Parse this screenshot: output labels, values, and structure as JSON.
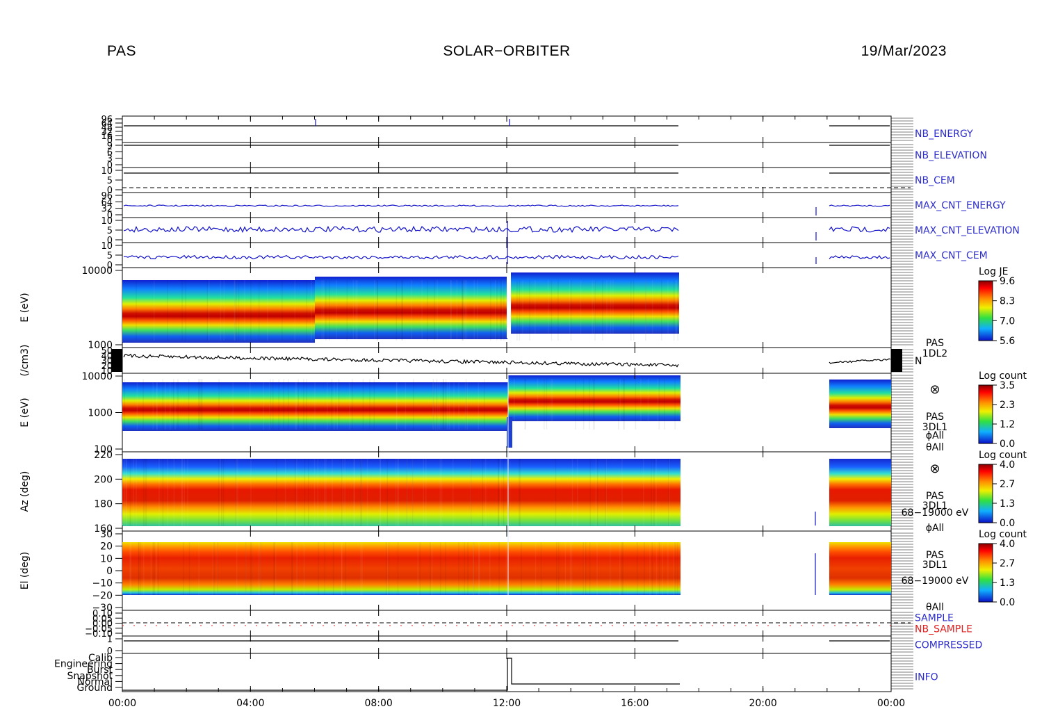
{
  "header": {
    "instrument": "PAS",
    "mission": "SOLAR−ORBITER",
    "date": "19/Mar/2023"
  },
  "colors": {
    "label_blue": "#2c2ccc",
    "label_red": "#e02020",
    "trace_blue": "#1010c8",
    "trace_black": "#000000"
  },
  "chart_data": [
    {
      "type": "line",
      "id": "nb_energy",
      "series": [
        {
          "name": "NB_ENERGY",
          "values": []
        }
      ],
      "ytick_labels": [
        "96",
        "64",
        "48",
        "32",
        "16",
        "0"
      ],
      "label_color": "#2c2ccc"
    },
    {
      "type": "line",
      "id": "nb_elevation",
      "series": [
        {
          "name": "NB_ELEVATION",
          "values": []
        }
      ],
      "ytick_labels": [
        "9",
        "6",
        "3",
        "0"
      ],
      "label_color": "#2c2ccc"
    },
    {
      "type": "line",
      "id": "nb_cem",
      "series": [
        {
          "name": "NB_CEM",
          "values": []
        }
      ],
      "ytick_labels": [
        "10",
        "5",
        "0"
      ],
      "label_color": "#2c2ccc"
    },
    {
      "type": "line",
      "id": "max_cnt_energy",
      "series": [
        {
          "name": "MAX_CNT_ENERGY",
          "values": []
        }
      ],
      "ytick_labels": [
        "96",
        "64",
        "32",
        "0"
      ],
      "label_color": "#2c2ccc"
    },
    {
      "type": "line",
      "id": "max_cnt_elevation",
      "series": [
        {
          "name": "MAX_CNT_ELEVATION",
          "values": []
        }
      ],
      "ytick_labels": [
        "10",
        "5",
        "0"
      ],
      "label_color": "#2c2ccc"
    },
    {
      "type": "line",
      "id": "max_cnt_cem",
      "series": [
        {
          "name": "MAX_CNT_CEM",
          "values": []
        }
      ],
      "ytick_labels": [
        "10",
        "5",
        "0"
      ],
      "label_color": "#2c2ccc"
    },
    {
      "type": "heatmap",
      "id": "spectrogram_1",
      "ylabel": "E (eV)",
      "yscale": "log",
      "ylim": [
        400,
        16000
      ],
      "ytick_labels": [
        "10000",
        "1000"
      ],
      "colorbar": {
        "label": "Log JE",
        "ticks": [
          "9.6",
          "8.3",
          "7.0",
          "5.6"
        ]
      },
      "side_text": []
    },
    {
      "type": "line",
      "id": "density",
      "ylabel": "(/cm3)",
      "ytick_labels": [
        "50",
        "40",
        "30",
        "20",
        "10"
      ],
      "ylim": [
        10,
        50
      ],
      "series": [
        {
          "name": "N",
          "values": []
        }
      ],
      "side_text": [
        "PAS",
        "1DL2"
      ]
    },
    {
      "type": "heatmap",
      "id": "spectrogram_2",
      "ylabel": "E (eV)",
      "yscale": "log",
      "ylim": [
        60,
        16000
      ],
      "ytick_labels": [
        "10000",
        "1000",
        "100"
      ],
      "colorbar": {
        "label": "Log count",
        "ticks": [
          "3.5",
          "2.3",
          "1.2",
          "0.0"
        ]
      },
      "side_text": [
        "⊗",
        "PAS",
        "3DL1",
        "ϕAll",
        "θAll"
      ]
    },
    {
      "type": "heatmap",
      "id": "azimuth",
      "ylabel": "Az (deg)",
      "ylim": [
        150,
        225
      ],
      "ytick_labels": [
        "220",
        "200",
        "180",
        "160"
      ],
      "colorbar": {
        "label": "Log count",
        "ticks": [
          "4.0",
          "2.7",
          "1.3",
          "0.0"
        ]
      },
      "side_text": [
        "⊗",
        "PAS",
        "3DL1",
        "68−19000 eV",
        "ϕAll"
      ]
    },
    {
      "type": "heatmap",
      "id": "elevation",
      "ylabel": "El (deg)",
      "ylim": [
        -30,
        30
      ],
      "ytick_labels": [
        "30",
        "20",
        "10",
        "0",
        "−10",
        "−20",
        "−30"
      ],
      "colorbar": {
        "label": "Log count",
        "ticks": [
          "4.0",
          "2.7",
          "1.3",
          "0.0"
        ]
      },
      "side_text": [
        "PAS",
        "3DL1",
        "68−19000 eV",
        "θAll"
      ]
    },
    {
      "type": "line",
      "id": "sample",
      "ytick_labels": [
        "0.10",
        "0.05",
        "0.00",
        "−0.05",
        "−0.10"
      ],
      "series": [
        {
          "name": "SAMPLE",
          "color": "#2c2ccc",
          "values": []
        },
        {
          "name": "NB_SAMPLE",
          "color": "#e02020",
          "values": []
        }
      ]
    },
    {
      "type": "line",
      "id": "compressed",
      "ytick_labels": [
        "1",
        "0"
      ],
      "series": [
        {
          "name": "COMPRESSED",
          "values": []
        }
      ],
      "label_color": "#2c2ccc"
    },
    {
      "type": "line",
      "id": "info",
      "ytick_labels": [
        "Calib",
        "Engineering",
        "Burst",
        "Snapshot",
        "Normal",
        "Ground"
      ],
      "series": [
        {
          "name": "INFO",
          "values": []
        }
      ],
      "label_color": "#2c2ccc"
    }
  ],
  "time_axis": {
    "tick_labels": [
      "00:00",
      "04:00",
      "08:00",
      "12:00",
      "16:00",
      "20:00",
      "00:00"
    ]
  }
}
